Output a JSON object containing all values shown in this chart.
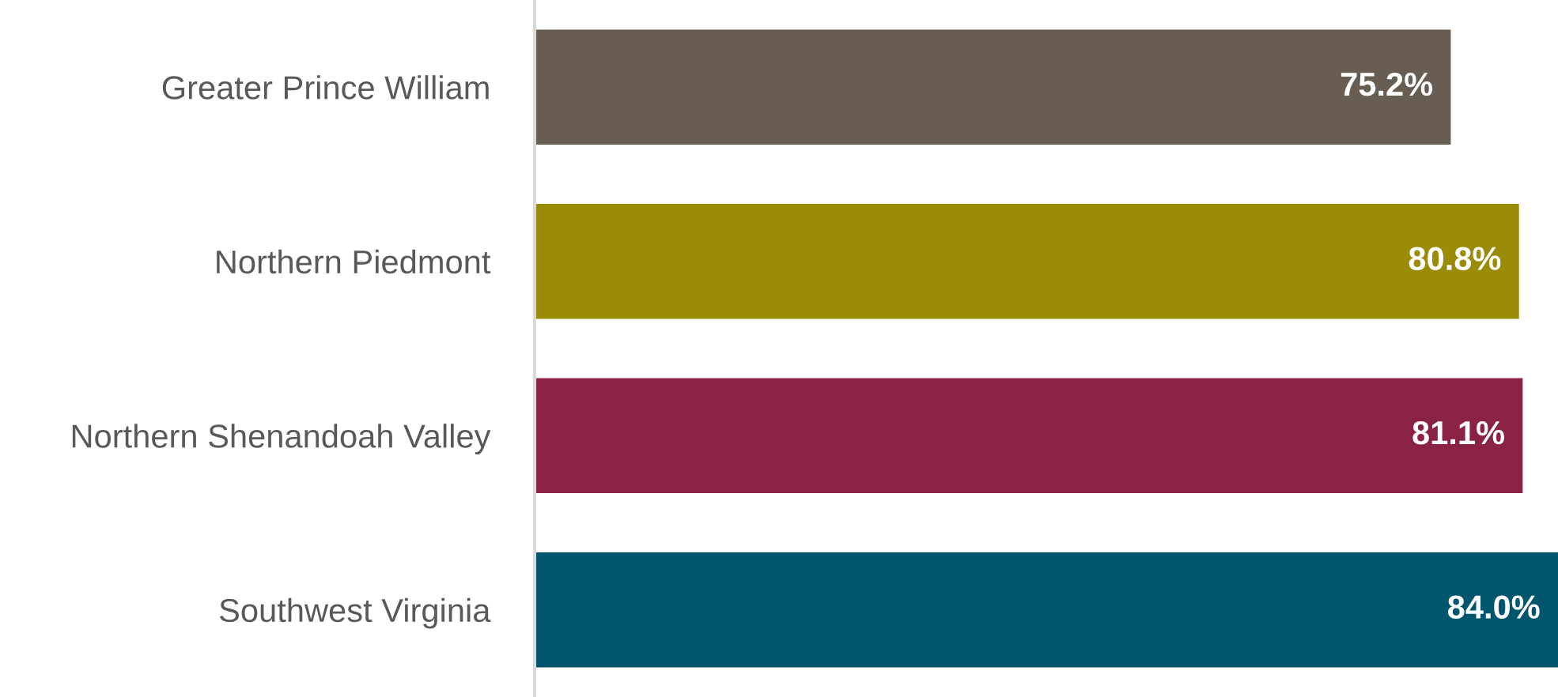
{
  "chart_data": {
    "type": "bar",
    "orientation": "horizontal",
    "categories": [
      "Greater Prince William",
      "Northern Piedmont",
      "Northern Shenandoah Valley",
      "Southwest Virginia"
    ],
    "values": [
      75.2,
      80.8,
      81.1,
      84.0
    ],
    "colors": [
      "#675d53",
      "#9a8c08",
      "#8a2245",
      "#01566d"
    ],
    "value_labels": [
      "75.2%",
      "80.8%",
      "81.1%",
      "84.0%"
    ],
    "tick_labels": "y",
    "grid": false,
    "legend": false
  }
}
